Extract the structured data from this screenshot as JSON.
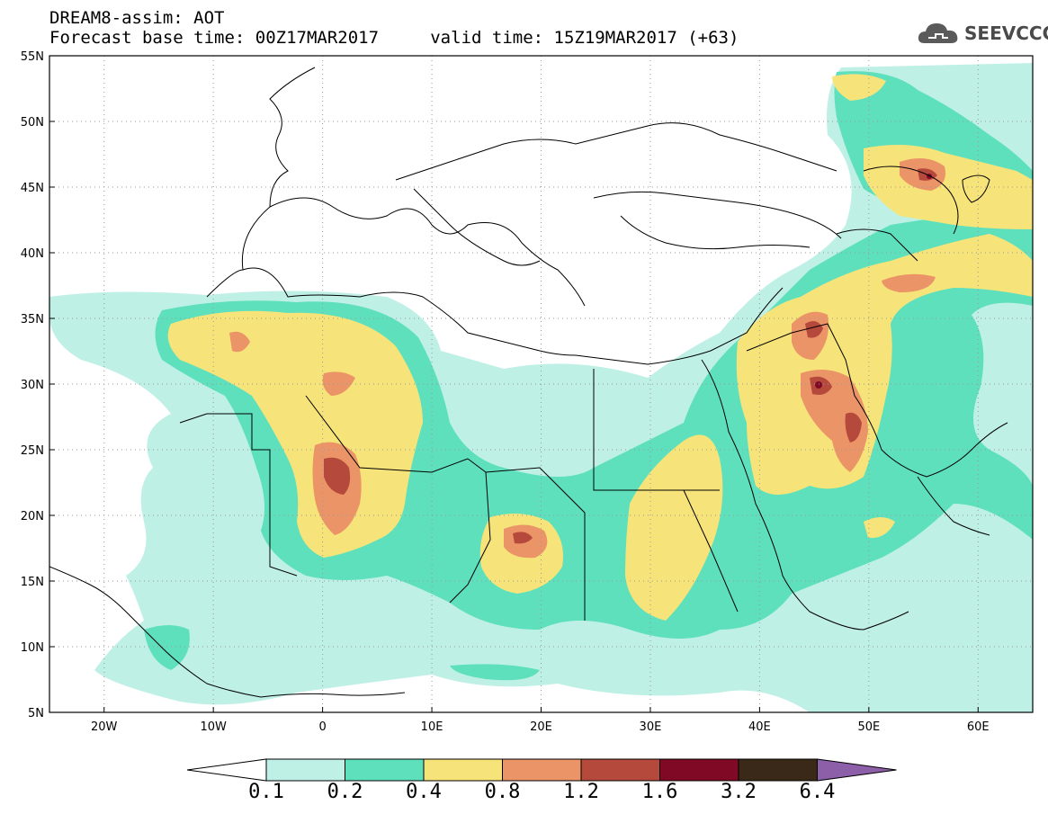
{
  "header": {
    "title_line1": "DREAM8-assim: AOT",
    "title_line2": "Forecast base time: 00Z17MAR2017     valid time: 15Z19MAR2017 (+63)"
  },
  "logo": {
    "text": "SEEVCCC",
    "icon": "cloud-icon"
  },
  "map": {
    "lon_range": [
      -25,
      65
    ],
    "lat_range": [
      5,
      55
    ],
    "lat_labels": [
      "55N",
      "50N",
      "45N",
      "40N",
      "35N",
      "30N",
      "25N",
      "20N",
      "15N",
      "10N",
      "5N"
    ],
    "lon_labels": [
      "20W",
      "10W",
      "0",
      "10E",
      "20E",
      "30E",
      "40E",
      "50E",
      "60E"
    ],
    "grid": "dotted"
  },
  "colorbar": {
    "labels": [
      "0.1",
      "0.2",
      "0.4",
      "0.8",
      "1.2",
      "1.6",
      "3.2",
      "6.4"
    ],
    "colors": [
      "#ffffff",
      "#bff0e6",
      "#5fe0bd",
      "#f6e47a",
      "#eb9467",
      "#b5493c",
      "#800a25",
      "#3a2818",
      "#8c5fa8"
    ]
  }
}
